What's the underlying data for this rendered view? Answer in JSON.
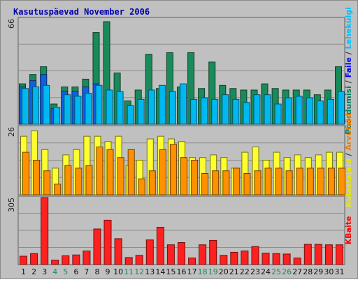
{
  "chart_data": {
    "type": "bar",
    "title": "Kasutuspäevad November 2006",
    "categories": [
      "1",
      "2",
      "3",
      "4",
      "5",
      "6",
      "7",
      "8",
      "9",
      "10",
      "11",
      "12",
      "13",
      "14",
      "15",
      "16",
      "17",
      "18",
      "19",
      "20",
      "21",
      "22",
      "23",
      "24",
      "25",
      "26",
      "27",
      "28",
      "29",
      "30",
      "31"
    ],
    "weekend_days": [
      "4",
      "5",
      "11",
      "12",
      "18",
      "19",
      "25",
      "26"
    ],
    "panels": [
      {
        "max_label": "66",
        "ylim": [
          0,
          66
        ],
        "grid": true,
        "legend": [
          "Pöördumisi",
          "Faile",
          "Lehekülgi"
        ],
        "legend_colors": [
          "#00805c",
          "#0000ff",
          "#00c0ff"
        ],
        "series": [
          {
            "name": "Pöördumisi",
            "color": "#1a8a5a",
            "values": [
              26,
              32,
              37,
              13,
              24,
              24,
              29,
              59,
              66,
              33,
              15,
              22,
              45,
              23,
              46,
              24,
              46,
              23,
              40,
              25,
              23,
              22,
              22,
              26,
              23,
              22,
              22,
              22,
              19,
              22,
              37
            ]
          },
          {
            "name": "Faile",
            "color": "#1060e0",
            "values": [
              24,
              28,
              32,
              10,
              21,
              21,
              24,
              26,
              0,
              0,
              0,
              0,
              0,
              0,
              0,
              0,
              0,
              0,
              0,
              0,
              0,
              0,
              0,
              0,
              0,
              0,
              0,
              0,
              0,
              0,
              0
            ]
          },
          {
            "name": "Lehekülgi",
            "color": "#00b8f0",
            "values": [
              23,
              24,
              25,
              11,
              19,
              18,
              20,
              25,
              22,
              21,
              12,
              16,
              22,
              25,
              21,
              26,
              16,
              17,
              16,
              19,
              16,
              14,
              19,
              19,
              13,
              17,
              18,
              17,
              15,
              16,
              21
            ]
          }
        ]
      },
      {
        "max_label": "26",
        "ylim": [
          0,
          26
        ],
        "grid": true,
        "legend": [
          "Külastajaid",
          "Arvuteid"
        ],
        "legend_colors": [
          "#e8e800",
          "#f08000"
        ],
        "series": [
          {
            "name": "Külastajaid",
            "color": "#ffff30",
            "values": [
              22,
              24,
              17,
              10,
              15,
              17,
              22,
              22,
              20,
              22,
              11,
              13,
              21,
              22,
              21,
              20,
              14,
              14,
              15,
              14,
              10,
              16,
              18,
              13,
              16,
              14,
              15,
              14,
              15,
              16,
              16
            ]
          },
          {
            "name": "Arvuteid",
            "color": "#ff9000",
            "values": [
              16,
              13,
              9,
              4,
              11,
              10,
              11,
              18,
              17,
              14,
              17,
              6,
              9,
              17,
              19,
              14,
              13,
              8,
              9,
              9,
              10,
              8,
              9,
              10,
              10,
              9,
              10,
              10,
              10,
              10,
              10
            ]
          }
        ]
      },
      {
        "max_label": "305",
        "ylim": [
          0,
          305
        ],
        "grid": true,
        "legend": [
          "KBaite"
        ],
        "legend_colors": [
          "#ff0000"
        ],
        "series": [
          {
            "name": "KBaite",
            "color": "#ff2020",
            "values": [
              38,
              50,
              305,
              20,
              40,
              44,
              62,
              162,
              202,
              118,
              32,
              42,
              112,
              170,
              90,
              100,
              30,
              90,
              110,
              42,
              56,
              62,
              82,
              52,
              50,
              48,
              30,
              92,
              92,
              90,
              90
            ]
          }
        ]
      }
    ]
  }
}
